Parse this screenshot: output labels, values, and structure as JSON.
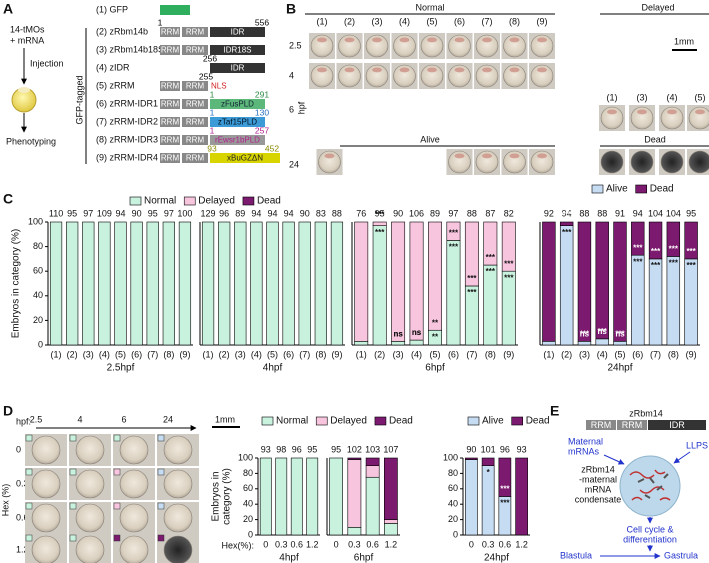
{
  "panel_labels": [
    "A",
    "B",
    "C",
    "D",
    "E"
  ],
  "panel_a": {
    "injection_mix": [
      "14-tMOs",
      "+ mRNA"
    ],
    "injection": "Injection",
    "phenotyping": "Phenotyping",
    "group_label": "GFP-tagged",
    "constructs": [
      {
        "name": "(1) GFP"
      },
      {
        "name": "(2) zRbm14b",
        "domains": [
          "RRM",
          "RRM",
          "IDR"
        ],
        "positions": [
          1,
          556
        ]
      },
      {
        "name": "(3) zRbm14b18S",
        "domains": [
          "RRM",
          "RRM",
          "IDR18S"
        ]
      },
      {
        "name": "(4) zIDR",
        "domains": [
          "IDR"
        ],
        "positions": [
          256
        ]
      },
      {
        "name": "(5) zRRM",
        "domains": [
          "RRM",
          "RRM",
          "NLS"
        ],
        "positions": [
          255
        ]
      },
      {
        "name": "(6) zRRM-IDR1",
        "domains": [
          "RRM",
          "RRM",
          "zFusPLD"
        ],
        "positions": [
          1,
          291
        ]
      },
      {
        "name": "(7) zRRM-IDR2",
        "domains": [
          "RRM",
          "RRM",
          "zTaf15PLD"
        ],
        "positions": [
          1,
          130
        ]
      },
      {
        "name": "(8) zRRM-IDR3",
        "domains": [
          "RRM",
          "RRM",
          "rEwsr1bPLD"
        ],
        "positions": [
          1,
          257
        ]
      },
      {
        "name": "(9) zRRM-IDR4",
        "domains": [
          "RRM",
          "RRM",
          "xBuGZΔN"
        ],
        "positions": [
          93,
          452
        ]
      }
    ]
  },
  "panel_b": {
    "groups": [
      "Normal",
      "Delayed",
      "Alive",
      "Dead"
    ],
    "columns": [
      "(1)",
      "(2)",
      "(3)",
      "(4)",
      "(5)",
      "(6)",
      "(7)",
      "(8)",
      "(9)"
    ],
    "delayed_columns": [
      "(1)",
      "(3)",
      "(4)",
      "(5)"
    ],
    "rows": [
      2.5,
      4,
      6,
      24
    ],
    "row_unit": "hpf",
    "scale": "1mm"
  },
  "panel_d_images": {
    "header": "hpf:",
    "times": [
      2.5,
      4,
      6,
      24
    ],
    "scale": "1mm",
    "hex_levels": [
      0,
      0.3,
      0.6,
      1.2
    ],
    "hex_label": "Hex (%)"
  },
  "panel_e": {
    "protein": "zRbm14",
    "domains": [
      "RRM",
      "RRM",
      "IDR"
    ],
    "input": [
      "Maternal",
      "mRNAs"
    ],
    "process": "LLPS",
    "condensate": [
      "zRbm14",
      "-maternal",
      "mRNA",
      "condensate"
    ],
    "outcome": [
      "Cell cycle &",
      "differentiation"
    ],
    "stages": [
      "Blastula",
      "Gastrula"
    ]
  },
  "chart_data": [
    {
      "type": "bar",
      "title": "2.5hpf",
      "ylabel": "Embryos in category (%)",
      "categories": [
        "(1)",
        "(2)",
        "(3)",
        "(4)",
        "(5)",
        "(6)",
        "(7)",
        "(8)",
        "(9)"
      ],
      "n": [
        110,
        95,
        97,
        109,
        94,
        90,
        95,
        97,
        100
      ],
      "series": [
        {
          "name": "Normal",
          "color": "#c8f1de",
          "values": [
            100,
            100,
            100,
            100,
            100,
            100,
            100,
            100,
            100
          ]
        }
      ],
      "ylim": [
        0,
        100
      ],
      "yticks": [
        0,
        20,
        40,
        60,
        80,
        100
      ]
    },
    {
      "type": "bar",
      "title": "4hpf",
      "categories": [
        "(1)",
        "(2)",
        "(3)",
        "(4)",
        "(5)",
        "(6)",
        "(7)",
        "(8)",
        "(9)"
      ],
      "n": [
        129,
        96,
        89,
        94,
        94,
        94,
        90,
        83,
        88
      ],
      "series": [
        {
          "name": "Normal",
          "color": "#c8f1de",
          "values": [
            100,
            100,
            100,
            100,
            100,
            100,
            100,
            100,
            100
          ]
        }
      ],
      "ylim": [
        0,
        100
      ]
    },
    {
      "type": "bar",
      "title": "6hpf",
      "legend": "top",
      "categories": [
        "(1)",
        "(2)",
        "(3)",
        "(4)",
        "(5)",
        "(6)",
        "(7)",
        "(8)",
        "(9)"
      ],
      "n": [
        76,
        95,
        90,
        106,
        89,
        97,
        88,
        87,
        82
      ],
      "series": [
        {
          "name": "Normal",
          "color": "#c8f1de",
          "values": [
            3,
            97,
            3,
            4,
            12,
            85,
            48,
            65,
            60
          ],
          "annotations": [
            null,
            "***",
            "ns",
            "ns",
            "**",
            "***",
            "***",
            "***",
            "***"
          ]
        },
        {
          "name": "Delayed",
          "color": "#f8c5df",
          "values": [
            97,
            3,
            97,
            96,
            88,
            15,
            52,
            35,
            40
          ],
          "annotations": [
            null,
            "***",
            "ns",
            "ns",
            "**",
            "***",
            "***",
            "***",
            "***"
          ]
        },
        {
          "name": "Dead",
          "color": "#7b1a6f",
          "values": [
            0,
            0,
            0,
            0,
            0,
            0,
            0,
            0,
            0
          ]
        }
      ],
      "ylim": [
        0,
        100
      ]
    },
    {
      "type": "bar",
      "title": "24hpf",
      "legend": "top",
      "categories": [
        "(1)",
        "(2)",
        "(3)",
        "(4)",
        "(5)",
        "(6)",
        "(7)",
        "(8)",
        "(9)"
      ],
      "n": [
        92,
        94,
        88,
        88,
        91,
        94,
        104,
        104,
        95
      ],
      "series": [
        {
          "name": "Alive",
          "color": "#c6dcf3",
          "values": [
            3,
            97,
            3,
            5,
            3,
            73,
            70,
            72,
            70
          ],
          "annotations": [
            null,
            "***",
            "***",
            "***",
            "***",
            "***",
            "***",
            "***",
            "***"
          ]
        },
        {
          "name": "Dead",
          "color": "#7b1a6f",
          "values": [
            97,
            3,
            97,
            95,
            97,
            27,
            30,
            28,
            30
          ],
          "annotations": [
            null,
            "***",
            "ns",
            "ns",
            "ns",
            "***",
            "***",
            "***",
            "***"
          ]
        }
      ],
      "ylim": [
        0,
        100
      ]
    },
    {
      "type": "bar",
      "title": "4hpf",
      "ylabel": [
        "Embryos in",
        "category (%)"
      ],
      "xlabel": "Hex(%):",
      "categories": [
        "0",
        "0.3",
        "0.6",
        "1.2"
      ],
      "n": [
        93,
        98,
        96,
        95
      ],
      "series": [
        {
          "name": "Normal",
          "color": "#c8f1de",
          "values": [
            100,
            100,
            100,
            100
          ]
        }
      ],
      "ylim": [
        0,
        100
      ],
      "yticks": [
        0,
        20,
        40,
        60,
        80,
        100
      ]
    },
    {
      "type": "bar",
      "title": "6hpf",
      "legend": "top",
      "categories": [
        "0",
        "0.3",
        "0.6",
        "1.2"
      ],
      "n": [
        95,
        102,
        103,
        107
      ],
      "series": [
        {
          "name": "Normal",
          "color": "#c8f1de",
          "values": [
            100,
            10,
            75,
            15
          ]
        },
        {
          "name": "Delayed",
          "color": "#f8c5df",
          "values": [
            0,
            88,
            15,
            5
          ]
        },
        {
          "name": "Dead",
          "color": "#7b1a6f",
          "values": [
            0,
            2,
            10,
            80
          ]
        }
      ],
      "ylim": [
        0,
        100
      ]
    },
    {
      "type": "bar",
      "title": "24hpf",
      "legend": "top",
      "categories": [
        "0",
        "0.3",
        "0.6",
        "1.2"
      ],
      "n": [
        90,
        101,
        96,
        93
      ],
      "series": [
        {
          "name": "Alive",
          "color": "#c6dcf3",
          "values": [
            98,
            90,
            50,
            0
          ],
          "annotations": [
            null,
            "*",
            "***",
            null
          ]
        },
        {
          "name": "Dead",
          "color": "#7b1a6f",
          "values": [
            2,
            10,
            50,
            100
          ],
          "annotations": [
            null,
            null,
            "***",
            null
          ]
        }
      ],
      "ylim": [
        0,
        100
      ],
      "yticks": [
        0,
        20,
        40,
        60,
        80,
        100
      ]
    }
  ]
}
